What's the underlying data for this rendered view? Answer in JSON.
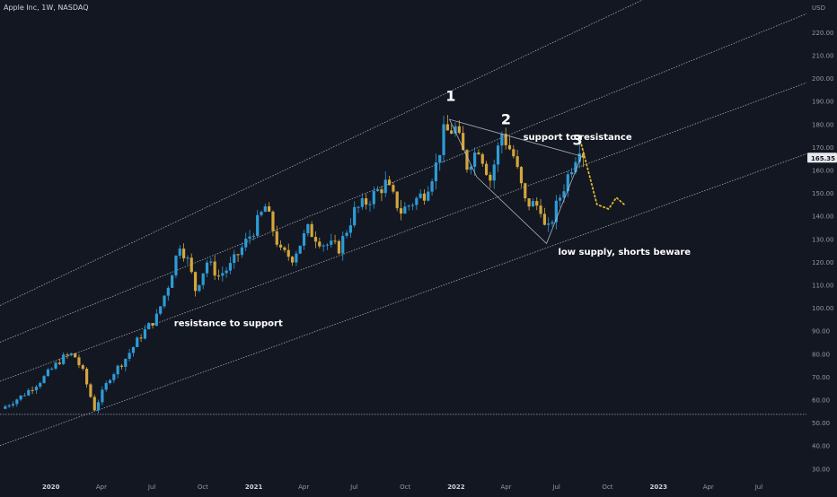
{
  "header": {
    "title": "Apple Inc, 1W, NASDAQ",
    "currency": "USD"
  },
  "last_price": {
    "value": 165.35,
    "label": "165.35",
    "color": "#2962ff"
  },
  "colors": {
    "background": "#131722",
    "up_candle": "#2e9bd6",
    "down_candle": "#d4a63b",
    "projection": "#e0b62f",
    "channel_line": "#b2b5be",
    "axis_text": "#9598a1",
    "annotation_text": "#ffffff"
  },
  "chart_data": {
    "type": "candlestick",
    "timeframe": "1W",
    "y_axis": {
      "ticks": [
        "220.00",
        "210.00",
        "200.00",
        "190.00",
        "180.00",
        "170.00",
        "160.00",
        "150.00",
        "140.00",
        "130.00",
        "120.00",
        "110.00",
        "100.00",
        "90.00",
        "80.00",
        "70.00",
        "60.00",
        "50.00",
        "40.00",
        "30.00"
      ],
      "range": [
        27,
        234
      ]
    },
    "x_axis": {
      "ticks": [
        {
          "label": "2020",
          "date": "2020-01-01",
          "bold": true
        },
        {
          "label": "Apr",
          "date": "2020-04-01",
          "bold": false
        },
        {
          "label": "Jul",
          "date": "2020-07-01",
          "bold": false
        },
        {
          "label": "Oct",
          "date": "2020-10-01",
          "bold": false
        },
        {
          "label": "2021",
          "date": "2021-01-01",
          "bold": true
        },
        {
          "label": "Apr",
          "date": "2021-04-01",
          "bold": false
        },
        {
          "label": "Jul",
          "date": "2021-07-01",
          "bold": false
        },
        {
          "label": "Oct",
          "date": "2021-10-01",
          "bold": false
        },
        {
          "label": "2022",
          "date": "2022-01-01",
          "bold": true
        },
        {
          "label": "Apr",
          "date": "2022-04-01",
          "bold": false
        },
        {
          "label": "Jul",
          "date": "2022-07-01",
          "bold": false
        },
        {
          "label": "Oct",
          "date": "2022-10-01",
          "bold": false
        },
        {
          "label": "2023",
          "date": "2023-01-01",
          "bold": true
        },
        {
          "label": "Apr",
          "date": "2023-04-01",
          "bold": false
        },
        {
          "label": "Jul",
          "date": "2023-07-01",
          "bold": false
        }
      ],
      "range": [
        "2019-10-01",
        "2023-09-25"
      ]
    },
    "price_path": [
      [
        "2019-10-07",
        56
      ],
      [
        "2019-11-15",
        62
      ],
      [
        "2019-12-20",
        69
      ],
      [
        "2020-01-24",
        78
      ],
      [
        "2020-02-14",
        80
      ],
      [
        "2020-03-02",
        72
      ],
      [
        "2020-03-23",
        56
      ],
      [
        "2020-04-20",
        70
      ],
      [
        "2020-05-18",
        78
      ],
      [
        "2020-06-15",
        88
      ],
      [
        "2020-07-13",
        96
      ],
      [
        "2020-08-03",
        110
      ],
      [
        "2020-08-24",
        128
      ],
      [
        "2020-09-08",
        120
      ],
      [
        "2020-09-21",
        108
      ],
      [
        "2020-10-12",
        120
      ],
      [
        "2020-11-02",
        114
      ],
      [
        "2020-11-23",
        118
      ],
      [
        "2020-12-14",
        126
      ],
      [
        "2021-01-04",
        134
      ],
      [
        "2021-01-25",
        144
      ],
      [
        "2021-02-22",
        124
      ],
      [
        "2021-03-15",
        122
      ],
      [
        "2021-04-12",
        134
      ],
      [
        "2021-05-10",
        128
      ],
      [
        "2021-06-07",
        126
      ],
      [
        "2021-07-05",
        142
      ],
      [
        "2021-07-26",
        146
      ],
      [
        "2021-08-30",
        154
      ],
      [
        "2021-09-27",
        142
      ],
      [
        "2021-10-18",
        146
      ],
      [
        "2021-11-08",
        150
      ],
      [
        "2021-11-29",
        162
      ],
      [
        "2021-12-13",
        176
      ],
      [
        "2022-01-03",
        178
      ],
      [
        "2022-01-24",
        162
      ],
      [
        "2022-02-14",
        170
      ],
      [
        "2022-03-07",
        156
      ],
      [
        "2022-03-28",
        176
      ],
      [
        "2022-04-18",
        166
      ],
      [
        "2022-05-09",
        146
      ],
      [
        "2022-06-06",
        144
      ],
      [
        "2022-06-16",
        131
      ],
      [
        "2022-07-04",
        144
      ],
      [
        "2022-08-01",
        162
      ],
      [
        "2022-08-15",
        171
      ]
    ],
    "last_close": 165.35,
    "projection": [
      [
        "2022-08-15",
        171
      ],
      [
        "2022-09-12",
        145
      ],
      [
        "2022-10-03",
        143
      ],
      [
        "2022-10-17",
        148
      ],
      [
        "2022-10-31",
        145
      ]
    ],
    "channel_lines": [
      {
        "name": "upper",
        "points": [
          [
            "2019-10-01",
            101
          ],
          [
            "2023-09-25",
            268
          ]
        ]
      },
      {
        "name": "upper-mid",
        "points": [
          [
            "2019-10-01",
            85
          ],
          [
            "2023-09-25",
            228
          ]
        ]
      },
      {
        "name": "lower-mid",
        "points": [
          [
            "2019-10-01",
            68
          ],
          [
            "2023-09-25",
            198
          ]
        ]
      },
      {
        "name": "lower",
        "points": [
          [
            "2019-10-01",
            40
          ],
          [
            "2023-09-25",
            167
          ]
        ]
      }
    ],
    "horizontal_line": {
      "value": 53.6
    },
    "triangle": [
      [
        "2021-12-20",
        182
      ],
      [
        "2022-08-15",
        166
      ],
      [
        "2022-06-13",
        128
      ],
      [
        "2022-02-07",
        157
      ]
    ],
    "annotations": [
      {
        "text": "1",
        "date": "2021-12-22",
        "price": 190,
        "size": "large"
      },
      {
        "text": "2",
        "date": "2022-04-01",
        "price": 180,
        "size": "large"
      },
      {
        "text": "3",
        "date": "2022-08-08",
        "price": 171,
        "size": "large"
      },
      {
        "text": "support to resistance",
        "date": "2022-05-02",
        "price": 173,
        "size": "small"
      },
      {
        "text": "resistance to support",
        "date": "2020-08-10",
        "price": 92,
        "size": "small"
      },
      {
        "text": "low supply, shorts beware",
        "date": "2022-07-04",
        "price": 123,
        "size": "small"
      }
    ]
  }
}
